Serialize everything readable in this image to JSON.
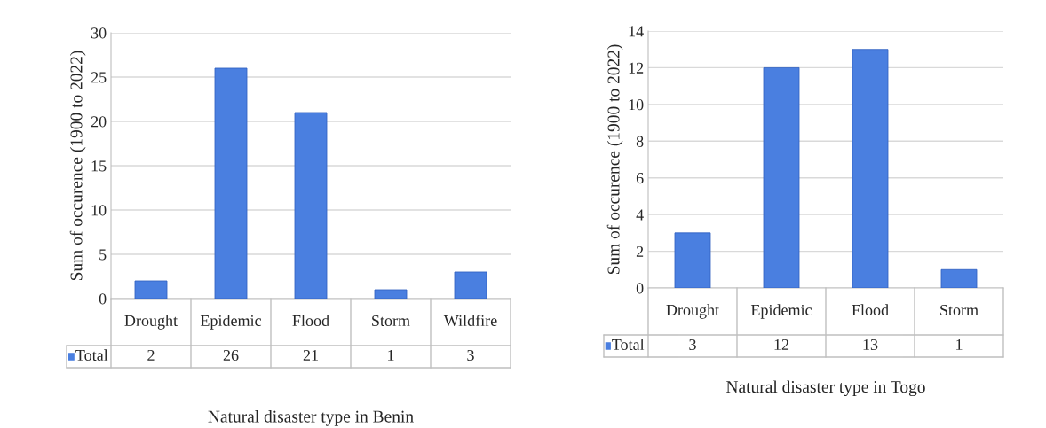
{
  "chart_data": [
    {
      "type": "bar",
      "xlabel": "Natural disaster type in Benin",
      "ylabel": "Sum of occurence (1900 to 2022)",
      "categories": [
        "Drought",
        "Epidemic",
        "Flood",
        "Storm",
        "Wildfire"
      ],
      "series": [
        {
          "name": "Total",
          "color": "#4a7fe0",
          "values": [
            2,
            26,
            21,
            1,
            3
          ]
        }
      ],
      "ylim": [
        0,
        30
      ],
      "yticks": [
        0,
        5,
        10,
        15,
        20,
        25,
        30
      ],
      "grid": "y",
      "data_labels": true
    },
    {
      "type": "bar",
      "xlabel": "Natural disaster type in Togo",
      "ylabel": "Sum of occurence (1900 to 2022)",
      "categories": [
        "Drought",
        "Epidemic",
        "Flood",
        "Storm"
      ],
      "series": [
        {
          "name": "Total",
          "color": "#4a7fe0",
          "values": [
            3,
            12,
            13,
            1
          ]
        }
      ],
      "ylim": [
        0,
        14
      ],
      "yticks": [
        0,
        2,
        4,
        6,
        8,
        10,
        12,
        14
      ],
      "grid": "y",
      "data_labels": true
    }
  ]
}
